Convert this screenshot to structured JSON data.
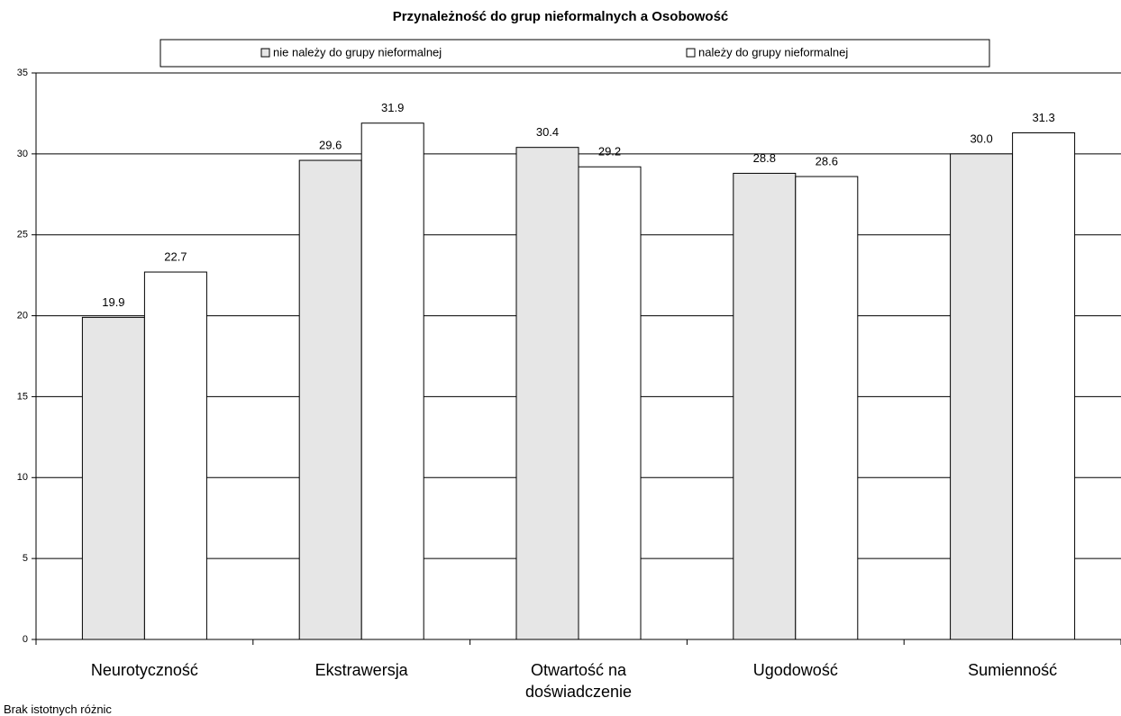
{
  "chart_data": {
    "type": "bar",
    "title": "Przynależność do grup nieformalnych a Osobowość",
    "categories": [
      "Neurotyczność",
      "Ekstrawersja",
      "Otwartość na doświadczenie",
      "Ugodowość",
      "Sumienność"
    ],
    "series": [
      {
        "name": "nie należy do grupy nieformalnej",
        "color": "#e6e6e6",
        "values": [
          19.9,
          29.6,
          30.4,
          28.8,
          30.0
        ],
        "value_labels": [
          "19.9",
          "29.6",
          "30.4",
          "28.8",
          "30.0"
        ]
      },
      {
        "name": "należy do grupy nieformalnej",
        "color": "#ffffff",
        "values": [
          22.7,
          31.9,
          29.2,
          28.6,
          31.3
        ],
        "value_labels": [
          "22.7",
          "31.9",
          "29.2",
          "28.6",
          "31.3"
        ]
      }
    ],
    "ylim": [
      0,
      35
    ],
    "yticks": [
      0,
      5,
      10,
      15,
      20,
      25,
      30,
      35
    ],
    "grid": true,
    "legend": "top",
    "note": "Brak istotnych różnic"
  }
}
